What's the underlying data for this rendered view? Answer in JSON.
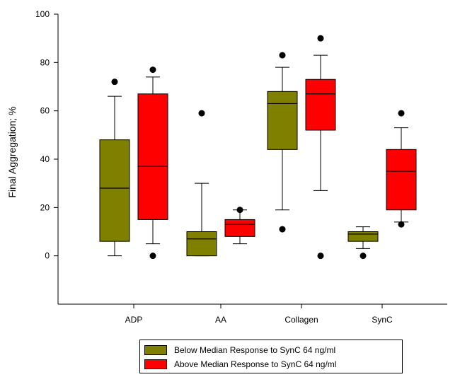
{
  "chart_data": {
    "type": "box",
    "categories": [
      "ADP",
      "AA",
      "Collagen",
      "SynC"
    ],
    "ylabel": "Final Aggregation; %",
    "xlabel": "",
    "ylim": [
      -20,
      100
    ],
    "yticks": [
      0,
      20,
      40,
      60,
      80,
      100
    ],
    "grid": false,
    "legend_position": "bottom",
    "series": [
      {
        "name": "Below Median Response to SynC 64 ng/ml",
        "color": "#808000",
        "boxes": [
          {
            "whisker_low": 0,
            "q1": 6,
            "median": 28,
            "q3": 48,
            "whisker_high": 66,
            "outliers": [
              72
            ]
          },
          {
            "whisker_low": 0,
            "q1": 0,
            "median": 7,
            "q3": 10,
            "whisker_high": 30,
            "outliers": [
              59
            ]
          },
          {
            "whisker_low": 19,
            "q1": 44,
            "median": 63,
            "q3": 68,
            "whisker_high": 78,
            "outliers": [
              83,
              11
            ]
          },
          {
            "whisker_low": 3,
            "q1": 6,
            "median": 9,
            "q3": 10,
            "whisker_high": 12,
            "outliers": [
              0
            ]
          }
        ]
      },
      {
        "name": "Above Median Response to SynC 64 ng/ml",
        "color": "#ff0000",
        "boxes": [
          {
            "whisker_low": 5,
            "q1": 15,
            "median": 37,
            "q3": 67,
            "whisker_high": 74,
            "outliers": [
              77,
              0
            ]
          },
          {
            "whisker_low": 5,
            "q1": 8,
            "median": 13,
            "q3": 15,
            "whisker_high": 19,
            "outliers": [
              19
            ]
          },
          {
            "whisker_low": 27,
            "q1": 52,
            "median": 67,
            "q3": 73,
            "whisker_high": 83,
            "outliers": [
              90,
              0
            ]
          },
          {
            "whisker_low": 14,
            "q1": 19,
            "median": 35,
            "q3": 44,
            "whisker_high": 53,
            "outliers": [
              59,
              13
            ]
          }
        ]
      }
    ]
  }
}
